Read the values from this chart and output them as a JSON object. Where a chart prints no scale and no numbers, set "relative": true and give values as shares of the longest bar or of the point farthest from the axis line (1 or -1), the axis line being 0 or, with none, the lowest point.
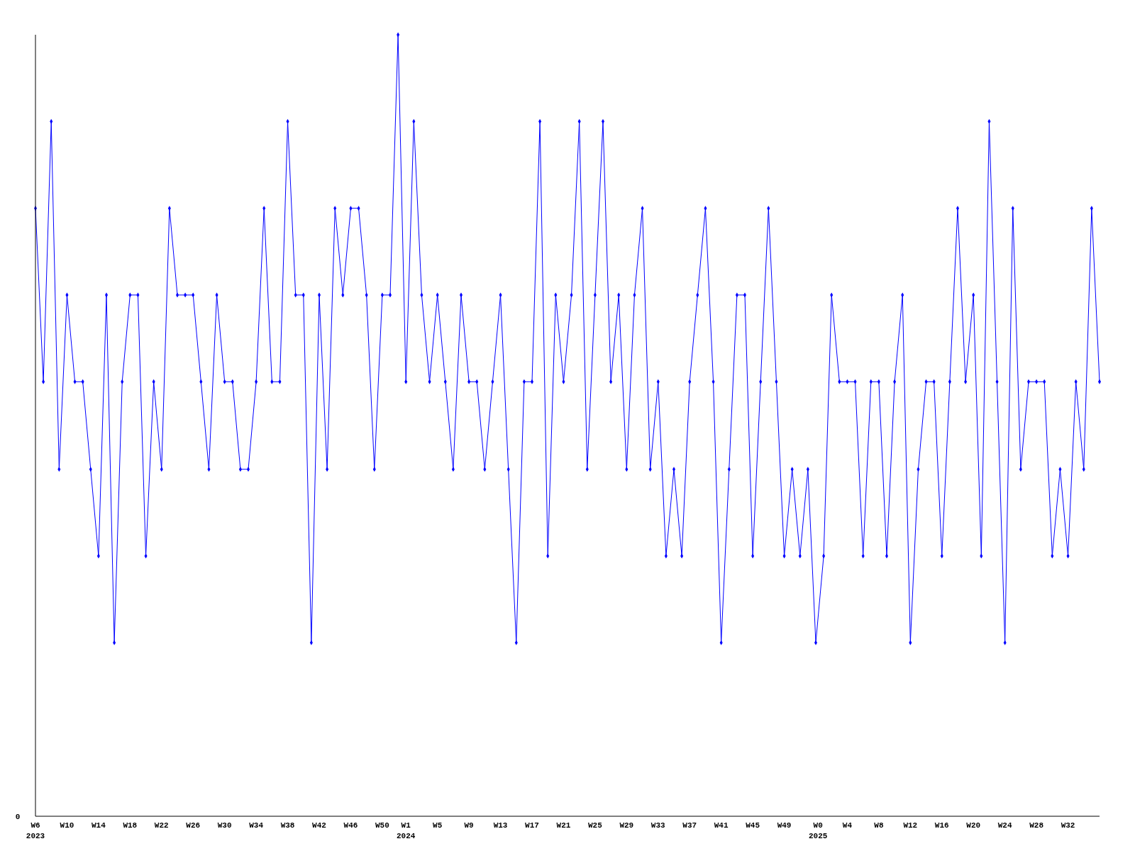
{
  "chart_data": {
    "type": "line",
    "relative": true,
    "color": "#0000ff",
    "marker": "diamond",
    "line_style": "solid",
    "grid": false,
    "annotations": [
      "0"
    ],
    "x": [
      "2023-02-06",
      "2023-02-13",
      "2023-02-20",
      "2023-02-27",
      "2023-03-06",
      "2023-03-13",
      "2023-03-20",
      "2023-03-27",
      "2023-04-03",
      "2023-04-10",
      "2023-04-17",
      "2023-04-24",
      "2023-05-01",
      "2023-05-08",
      "2023-05-15",
      "2023-05-22",
      "2023-05-29",
      "2023-06-05",
      "2023-06-12",
      "2023-06-19",
      "2023-06-26",
      "2023-07-03",
      "2023-07-10",
      "2023-07-17",
      "2023-07-24",
      "2023-07-31",
      "2023-08-07",
      "2023-08-14",
      "2023-08-21",
      "2023-08-28",
      "2023-09-04",
      "2023-09-11",
      "2023-09-18",
      "2023-09-25",
      "2023-10-02",
      "2023-10-09",
      "2023-10-16",
      "2023-10-23",
      "2023-10-30",
      "2023-11-06",
      "2023-11-13",
      "2023-11-20",
      "2023-11-27",
      "2023-12-04",
      "2023-12-11",
      "2023-12-18",
      "2023-12-25",
      "2024-01-01",
      "2024-01-08",
      "2024-01-15",
      "2024-01-22",
      "2024-01-29",
      "2024-02-05",
      "2024-02-12",
      "2024-02-19",
      "2024-02-26",
      "2024-03-04",
      "2024-03-11",
      "2024-03-18",
      "2024-03-25",
      "2024-04-01",
      "2024-04-08",
      "2024-04-15",
      "2024-04-22",
      "2024-04-29",
      "2024-05-06",
      "2024-05-13",
      "2024-05-20",
      "2024-05-27",
      "2024-06-03",
      "2024-06-10",
      "2024-06-17",
      "2024-06-24",
      "2024-07-01",
      "2024-07-08",
      "2024-07-15",
      "2024-07-22",
      "2024-07-29",
      "2024-08-05",
      "2024-08-12",
      "2024-08-19",
      "2024-08-26",
      "2024-09-02",
      "2024-09-09",
      "2024-09-16",
      "2024-09-23",
      "2024-09-30",
      "2024-10-07",
      "2024-10-14",
      "2024-10-21",
      "2024-10-28",
      "2024-11-04",
      "2024-11-11",
      "2024-11-18",
      "2024-11-25",
      "2024-12-02",
      "2024-12-09",
      "2024-12-16",
      "2024-12-23",
      "2024-12-30",
      "2025-01-06",
      "2025-01-13",
      "2025-01-20",
      "2025-01-27",
      "2025-02-03",
      "2025-02-10",
      "2025-02-17",
      "2025-02-24",
      "2025-03-03",
      "2025-03-10",
      "2025-03-17",
      "2025-03-24",
      "2025-03-31",
      "2025-04-07",
      "2025-04-14",
      "2025-04-21",
      "2025-04-28",
      "2025-05-05",
      "2025-05-12",
      "2025-05-19",
      "2025-05-26",
      "2025-06-02",
      "2025-06-09",
      "2025-06-16",
      "2025-06-23",
      "2025-06-30",
      "2025-07-07",
      "2025-07-14",
      "2025-07-21",
      "2025-07-28",
      "2025-08-04",
      "2025-08-11",
      "2025-08-18",
      "2025-08-25",
      "2025-09-01",
      "2025-09-08"
    ],
    "values": [
      0.778,
      0.556,
      0.889,
      0.444,
      0.667,
      0.556,
      0.556,
      0.444,
      0.333,
      0.667,
      0.222,
      0.556,
      0.667,
      0.667,
      0.333,
      0.556,
      0.444,
      0.778,
      0.667,
      0.667,
      0.667,
      0.556,
      0.444,
      0.667,
      0.556,
      0.556,
      0.444,
      0.444,
      0.556,
      0.778,
      0.556,
      0.556,
      0.889,
      0.667,
      0.667,
      0.222,
      0.667,
      0.444,
      0.778,
      0.667,
      0.778,
      0.778,
      0.667,
      0.444,
      0.667,
      0.667,
      1,
      0.556,
      0.889,
      0.667,
      0.556,
      0.667,
      0.556,
      0.444,
      0.667,
      0.556,
      0.556,
      0.444,
      0.556,
      0.667,
      0.444,
      0.222,
      0.556,
      0.556,
      0.889,
      0.333,
      0.667,
      0.556,
      0.667,
      0.889,
      0.444,
      0.667,
      0.889,
      0.556,
      0.667,
      0.444,
      0.667,
      0.778,
      0.444,
      0.556,
      0.333,
      0.444,
      0.333,
      0.556,
      0.667,
      0.778,
      0.556,
      0.222,
      0.444,
      0.667,
      0.667,
      0.333,
      0.556,
      0.778,
      0.556,
      0.333,
      0.444,
      0.333,
      0.444,
      0.222,
      0.333,
      0.667,
      0.556,
      0.556,
      0.556,
      0.333,
      0.556,
      0.556,
      0.333,
      0.556,
      0.667,
      0.222,
      0.444,
      0.556,
      0.556,
      0.333,
      0.556,
      0.778,
      0.556,
      0.667,
      0.333,
      0.889,
      0.556,
      0.222,
      0.778,
      0.444,
      0.556,
      0.556,
      0.556,
      0.333,
      0.444,
      0.333,
      0.556,
      0.444,
      0.778,
      0.556
    ],
    "xlim": [
      "2023-02-06",
      "2025-09-08"
    ],
    "xticks": [
      {
        "value": "2023-02-06",
        "label": "W6\n2023"
      },
      {
        "value": "2023-03-06",
        "label": "W10"
      },
      {
        "value": "2023-04-03",
        "label": "W14"
      },
      {
        "value": "2023-05-01",
        "label": "W18"
      },
      {
        "value": "2023-05-29",
        "label": "W22"
      },
      {
        "value": "2023-06-26",
        "label": "W26"
      },
      {
        "value": "2023-07-24",
        "label": "W30"
      },
      {
        "value": "2023-08-21",
        "label": "W34"
      },
      {
        "value": "2023-09-18",
        "label": "W38"
      },
      {
        "value": "2023-10-16",
        "label": "W42"
      },
      {
        "value": "2023-11-13",
        "label": "W46"
      },
      {
        "value": "2023-12-11",
        "label": "W50"
      },
      {
        "value": "2024-01-01",
        "label": "W1\n2024"
      },
      {
        "value": "2024-01-29",
        "label": "W5"
      },
      {
        "value": "2024-02-26",
        "label": "W9"
      },
      {
        "value": "2024-03-25",
        "label": "W13"
      },
      {
        "value": "2024-04-22",
        "label": "W17"
      },
      {
        "value": "2024-05-20",
        "label": "W21"
      },
      {
        "value": "2024-06-17",
        "label": "W25"
      },
      {
        "value": "2024-07-15",
        "label": "W29"
      },
      {
        "value": "2024-08-12",
        "label": "W33"
      },
      {
        "value": "2024-09-09",
        "label": "W37"
      },
      {
        "value": "2024-10-07",
        "label": "W41"
      },
      {
        "value": "2024-11-04",
        "label": "W45"
      },
      {
        "value": "2024-12-02",
        "label": "W49"
      },
      {
        "value": "2025-01-01",
        "label": "W0\n2025"
      },
      {
        "value": "2025-01-27",
        "label": "W4"
      },
      {
        "value": "2025-02-24",
        "label": "W8"
      },
      {
        "value": "2025-03-24",
        "label": "W12"
      },
      {
        "value": "2025-04-21",
        "label": "W16"
      },
      {
        "value": "2025-05-19",
        "label": "W20"
      },
      {
        "value": "2025-06-16",
        "label": "W24"
      },
      {
        "value": "2025-07-14",
        "label": "W28"
      },
      {
        "value": "2025-08-11",
        "label": "W32"
      }
    ]
  }
}
